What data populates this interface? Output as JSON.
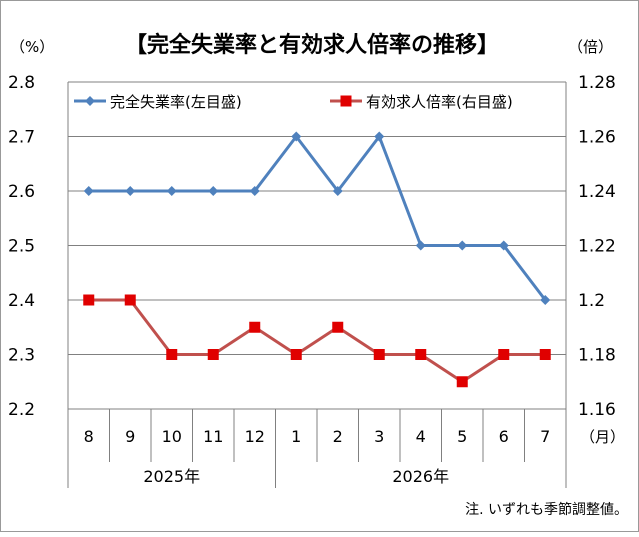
{
  "chart_data": {
    "type": "line",
    "title": "【完全失業率と有効求人倍率の推移】",
    "left_unit": "（%）",
    "right_unit": "（倍）",
    "x_unit": "（月）",
    "categories": [
      "8",
      "9",
      "10",
      "11",
      "12",
      "1",
      "2",
      "3",
      "4",
      "5",
      "6",
      "7"
    ],
    "year_groups": [
      {
        "label": "2025年",
        "months": [
          "8",
          "9",
          "10",
          "11",
          "12"
        ]
      },
      {
        "label": "2026年",
        "months": [
          "1",
          "2",
          "3",
          "4",
          "5",
          "6",
          "7"
        ]
      }
    ],
    "left_axis": {
      "ylim": [
        2.2,
        2.8
      ],
      "ticks": [
        "2.2",
        "2.3",
        "2.4",
        "2.5",
        "2.6",
        "2.7",
        "2.8"
      ]
    },
    "right_axis": {
      "ylim": [
        1.16,
        1.28
      ],
      "ticks": [
        "1.16",
        "1.18",
        "1.2",
        "1.22",
        "1.24",
        "1.26",
        "1.28"
      ]
    },
    "series": [
      {
        "name": "完全失業率(左目盛)",
        "axis": "left",
        "color": "#4F81BD",
        "marker": "diamond",
        "values": [
          2.6,
          2.6,
          2.6,
          2.6,
          2.6,
          2.7,
          2.6,
          2.7,
          2.5,
          2.5,
          2.5,
          2.4
        ]
      },
      {
        "name": "有効求人倍率(右目盛)",
        "axis": "right",
        "color": "#C0504D",
        "marker_color": "#E00000",
        "marker": "square",
        "values": [
          1.2,
          1.2,
          1.18,
          1.18,
          1.19,
          1.18,
          1.19,
          1.18,
          1.18,
          1.17,
          1.18,
          1.18
        ]
      }
    ],
    "legend_position": "top",
    "grid": true,
    "note": "注. いずれも季節調整値。"
  }
}
